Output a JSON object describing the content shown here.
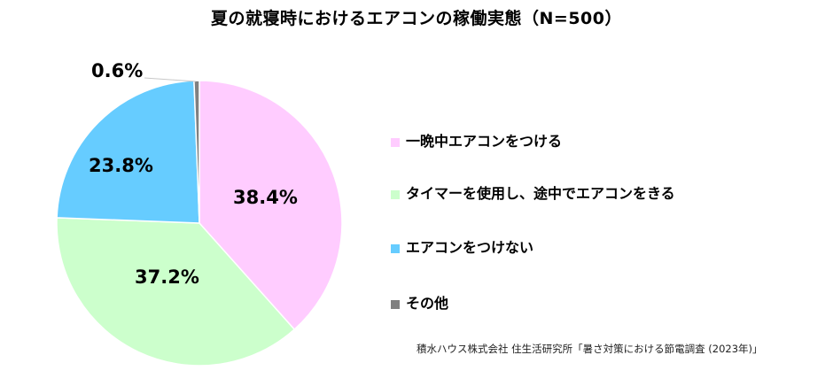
{
  "title": "夏の就寝時におけるエアコンの稼働実態（N=500）",
  "chart_data": {
    "type": "pie",
    "title": "夏の就寝時におけるエアコンの稼働実態（N=500）",
    "categories": [
      "一晩中エアコンをつける",
      "タイマーを使用し、途中でエアコンをきる",
      "エアコンをつけない",
      "その他"
    ],
    "values": [
      38.4,
      37.2,
      23.8,
      0.6
    ],
    "unit": "%",
    "colors": [
      "#FFCCFF",
      "#CCFFCC",
      "#66CCFF",
      "#808080"
    ],
    "start_angle": "12 o'clock, clockwise",
    "legend_position": "right",
    "n": 500
  },
  "labels": {
    "slice0": "38.4%",
    "slice1": "37.2%",
    "slice2": "23.8%",
    "slice3": "0.6%"
  },
  "legend": [
    {
      "label": "一晩中エアコンをつける",
      "color": "#FFCCFF"
    },
    {
      "label": "タイマーを使用し、途中でエアコンをきる",
      "color": "#CCFFCC"
    },
    {
      "label": "エアコンをつけない",
      "color": "#66CCFF"
    },
    {
      "label": "その他",
      "color": "#808080"
    }
  ],
  "source": "積水ハウス株式会社 住生活研究所「暑さ対策における節電調査 (2023年)」"
}
